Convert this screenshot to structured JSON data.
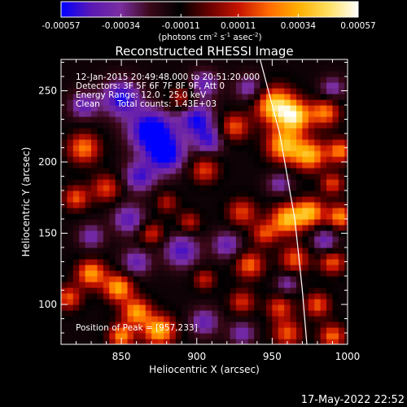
{
  "chart_data": {
    "type": "heatmap",
    "title": "Reconstructed RHESSI Image",
    "xlabel": "Heliocentric X (arcsec)",
    "ylabel": "Heliocentric Y (arcsec)",
    "xlim": [
      810,
      1000
    ],
    "ylim": [
      72,
      272
    ],
    "x_ticks": [
      850,
      900,
      950,
      1000
    ],
    "y_ticks": [
      100,
      150,
      200,
      250
    ],
    "colorbar": {
      "range": [
        -0.00057,
        0.00057
      ],
      "tick_values": [
        -0.00057,
        -0.00034,
        -0.00011,
        0.00011,
        0.00034,
        0.00057
      ],
      "tick_labels": [
        "-0.00057",
        "-0.00034",
        "-0.00011",
        "0.00011",
        "0.00034",
        "0.00057"
      ],
      "units_text": "(photons cm",
      "units_exp1": "-2",
      "units_mid": " s",
      "units_exp2": "-1",
      "units_mid2": " asec",
      "units_exp3": "-2",
      "units_end": ")",
      "colors": [
        "#0000ff",
        "#5a18b4",
        "#7a2ea0",
        "#3a0818",
        "#000000",
        "#6a0000",
        "#c81400",
        "#ff6a00",
        "#ffb000",
        "#ffe060",
        "#ffffff"
      ]
    },
    "annotations": {
      "time_range": "12-Jan-2015 20:49:48.000 to 20:51:20.000",
      "detectors": "Detectors: 3F 5F 6F 7F 8F 9F, Att 0",
      "energy": "Energy Range: 12.0 - 25.0 keV",
      "method": "Clean",
      "total_counts": "Total counts: 1.43E+03",
      "peak": "Position of Peak = [957,233]"
    },
    "peak_position": [
      957,
      233
    ],
    "limb_curve": [
      [
        942,
        272
      ],
      [
        955,
        220
      ],
      [
        965,
        160
      ],
      [
        970,
        110
      ],
      [
        973,
        72
      ]
    ],
    "hot_regions": [
      {
        "x": 952,
        "y": 240,
        "r": 12,
        "v": 1.0
      },
      {
        "x": 965,
        "y": 232,
        "r": 10,
        "v": 0.95
      },
      {
        "x": 985,
        "y": 235,
        "r": 9,
        "v": 0.7
      },
      {
        "x": 958,
        "y": 212,
        "r": 11,
        "v": 0.9
      },
      {
        "x": 975,
        "y": 205,
        "r": 10,
        "v": 0.85
      },
      {
        "x": 995,
        "y": 208,
        "r": 8,
        "v": 0.7
      },
      {
        "x": 990,
        "y": 185,
        "r": 7,
        "v": 0.55
      },
      {
        "x": 825,
        "y": 210,
        "r": 10,
        "v": 0.7
      },
      {
        "x": 840,
        "y": 182,
        "r": 9,
        "v": 0.55
      },
      {
        "x": 820,
        "y": 175,
        "r": 8,
        "v": 0.6
      },
      {
        "x": 905,
        "y": 195,
        "r": 9,
        "v": 0.55
      },
      {
        "x": 925,
        "y": 225,
        "r": 9,
        "v": 0.6
      },
      {
        "x": 890,
        "y": 245,
        "r": 8,
        "v": 0.45
      },
      {
        "x": 930,
        "y": 165,
        "r": 9,
        "v": 0.55
      },
      {
        "x": 960,
        "y": 160,
        "r": 10,
        "v": 0.9
      },
      {
        "x": 975,
        "y": 165,
        "r": 9,
        "v": 0.85
      },
      {
        "x": 995,
        "y": 162,
        "r": 8,
        "v": 0.75
      },
      {
        "x": 945,
        "y": 150,
        "r": 8,
        "v": 0.55
      },
      {
        "x": 870,
        "y": 150,
        "r": 8,
        "v": 0.5
      },
      {
        "x": 895,
        "y": 158,
        "r": 7,
        "v": 0.45
      },
      {
        "x": 935,
        "y": 128,
        "r": 9,
        "v": 0.65
      },
      {
        "x": 965,
        "y": 132,
        "r": 9,
        "v": 0.6
      },
      {
        "x": 990,
        "y": 130,
        "r": 8,
        "v": 0.6
      },
      {
        "x": 830,
        "y": 122,
        "r": 9,
        "v": 0.8
      },
      {
        "x": 848,
        "y": 112,
        "r": 9,
        "v": 0.85
      },
      {
        "x": 815,
        "y": 105,
        "r": 8,
        "v": 0.6
      },
      {
        "x": 860,
        "y": 95,
        "r": 9,
        "v": 0.8
      },
      {
        "x": 875,
        "y": 82,
        "r": 10,
        "v": 0.9
      },
      {
        "x": 850,
        "y": 78,
        "r": 8,
        "v": 0.75
      },
      {
        "x": 930,
        "y": 102,
        "r": 8,
        "v": 0.5
      },
      {
        "x": 955,
        "y": 98,
        "r": 8,
        "v": 0.55
      },
      {
        "x": 980,
        "y": 100,
        "r": 8,
        "v": 0.6
      },
      {
        "x": 960,
        "y": 80,
        "r": 9,
        "v": 0.6
      },
      {
        "x": 990,
        "y": 78,
        "r": 8,
        "v": 0.65
      },
      {
        "x": 905,
        "y": 118,
        "r": 7,
        "v": 0.45
      },
      {
        "x": 880,
        "y": 172,
        "r": 7,
        "v": 0.4
      }
    ],
    "cold_regions": [
      {
        "x": 870,
        "y": 222,
        "r": 14,
        "v": -0.9
      },
      {
        "x": 850,
        "y": 245,
        "r": 12,
        "v": -0.7
      },
      {
        "x": 900,
        "y": 230,
        "r": 11,
        "v": -0.7
      },
      {
        "x": 880,
        "y": 205,
        "r": 12,
        "v": -0.75
      },
      {
        "x": 862,
        "y": 190,
        "r": 10,
        "v": -0.6
      },
      {
        "x": 908,
        "y": 215,
        "r": 9,
        "v": -0.55
      },
      {
        "x": 825,
        "y": 240,
        "r": 9,
        "v": -0.5
      },
      {
        "x": 855,
        "y": 160,
        "r": 10,
        "v": -0.55
      },
      {
        "x": 890,
        "y": 138,
        "r": 11,
        "v": -0.6
      },
      {
        "x": 860,
        "y": 130,
        "r": 9,
        "v": -0.5
      },
      {
        "x": 920,
        "y": 142,
        "r": 9,
        "v": -0.5
      },
      {
        "x": 985,
        "y": 145,
        "r": 8,
        "v": -0.5
      },
      {
        "x": 905,
        "y": 88,
        "r": 9,
        "v": -0.5
      },
      {
        "x": 930,
        "y": 80,
        "r": 8,
        "v": -0.45
      },
      {
        "x": 830,
        "y": 148,
        "r": 8,
        "v": -0.45
      },
      {
        "x": 935,
        "y": 252,
        "r": 9,
        "v": -0.45
      },
      {
        "x": 990,
        "y": 252,
        "r": 8,
        "v": -0.4
      },
      {
        "x": 955,
        "y": 185,
        "r": 8,
        "v": -0.4
      },
      {
        "x": 905,
        "y": 255,
        "r": 9,
        "v": -0.5
      },
      {
        "x": 960,
        "y": 115,
        "r": 7,
        "v": -0.4
      }
    ]
  },
  "footer": {
    "timestamp": "17-May-2022 22:52"
  }
}
